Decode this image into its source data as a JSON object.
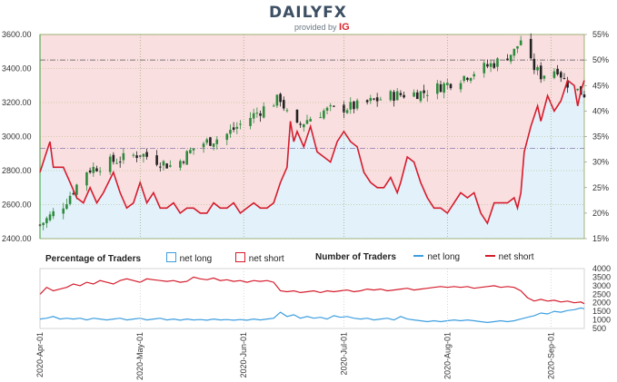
{
  "brand": {
    "name": "DAILYFX",
    "provided_by": "provided by",
    "provider": "IG"
  },
  "legend": {
    "pct_title": "Percentage of Traders",
    "count_title": "Number of Traders",
    "net_long": "net long",
    "net_short": "net short"
  },
  "colors": {
    "long_line": "#3d9ee0",
    "short_line": "#d51c2c",
    "long_fill": "#e3f1fb",
    "short_fill": "#fadfe0",
    "up_candle": "#2e8b3d",
    "down_candle": "#222222"
  },
  "chart_data": [
    {
      "type": "candlestick",
      "title": "",
      "y_left_label": "",
      "ylim": [
        2400,
        3600
      ],
      "y_ticks": [
        2400,
        2600,
        2800,
        3000,
        3200,
        3400,
        3600
      ],
      "y_tick_labels": [
        "2400.00",
        "2600.00",
        "2800.00",
        "3000.00",
        "3200.00",
        "3400.00",
        "3600.00"
      ],
      "start_day": 0,
      "end_day": 163,
      "close_anchors": [
        [
          0,
          2480
        ],
        [
          7,
          2600
        ],
        [
          14,
          2800
        ],
        [
          21,
          2850
        ],
        [
          30,
          2900
        ],
        [
          40,
          2820
        ],
        [
          47,
          2950
        ],
        [
          55,
          3000
        ],
        [
          62,
          3100
        ],
        [
          68,
          3180
        ],
        [
          72,
          3225
        ],
        [
          76,
          3040
        ],
        [
          80,
          3100
        ],
        [
          85,
          3150
        ],
        [
          95,
          3180
        ],
        [
          105,
          3240
        ],
        [
          115,
          3260
        ],
        [
          122,
          3310
        ],
        [
          130,
          3380
        ],
        [
          137,
          3440
        ],
        [
          142,
          3500
        ],
        [
          144,
          3570
        ],
        [
          146,
          3450
        ],
        [
          150,
          3360
        ],
        [
          155,
          3400
        ],
        [
          157,
          3330
        ],
        [
          160,
          3280
        ],
        [
          163,
          3250
        ]
      ],
      "ref_lines": [
        3450,
        2930
      ]
    },
    {
      "type": "line",
      "series": [
        {
          "name": "net long",
          "color": "#3d9ee0"
        },
        {
          "name": "net short",
          "color": "#d51c2c"
        }
      ],
      "y_right_label": "",
      "ylim": [
        15,
        55
      ],
      "y_ticks": [
        15,
        20,
        25,
        30,
        35,
        40,
        45,
        50,
        55
      ],
      "y_tick_labels": [
        "15%",
        "20%",
        "25%",
        "30%",
        "35%",
        "40%",
        "45%",
        "50%",
        "55%"
      ],
      "net_long_pct": [
        [
          0,
          28
        ],
        [
          2,
          32
        ],
        [
          3,
          34
        ],
        [
          4,
          29
        ],
        [
          7,
          29
        ],
        [
          9,
          26
        ],
        [
          11,
          23
        ],
        [
          13,
          22
        ],
        [
          15,
          25
        ],
        [
          17,
          22
        ],
        [
          19,
          24
        ],
        [
          22,
          28
        ],
        [
          24,
          24
        ],
        [
          26,
          21
        ],
        [
          28,
          22
        ],
        [
          30,
          26
        ],
        [
          32,
          22
        ],
        [
          34,
          24
        ],
        [
          36,
          21
        ],
        [
          38,
          21
        ],
        [
          40,
          22
        ],
        [
          42,
          20
        ],
        [
          44,
          21
        ],
        [
          46,
          21
        ],
        [
          48,
          20
        ],
        [
          50,
          20
        ],
        [
          52,
          22
        ],
        [
          54,
          21
        ],
        [
          56,
          21
        ],
        [
          58,
          22
        ],
        [
          60,
          20
        ],
        [
          62,
          21
        ],
        [
          64,
          22
        ],
        [
          66,
          21
        ],
        [
          68,
          21
        ],
        [
          70,
          22
        ],
        [
          72,
          26
        ],
        [
          74,
          29
        ],
        [
          75,
          38
        ],
        [
          76,
          34
        ],
        [
          77,
          36
        ],
        [
          79,
          33
        ],
        [
          81,
          37
        ],
        [
          83,
          32
        ],
        [
          85,
          31
        ],
        [
          87,
          30
        ],
        [
          89,
          34
        ],
        [
          91,
          36
        ],
        [
          93,
          34
        ],
        [
          95,
          33
        ],
        [
          97,
          28
        ],
        [
          99,
          26
        ],
        [
          101,
          25
        ],
        [
          103,
          25
        ],
        [
          105,
          27
        ],
        [
          107,
          24
        ],
        [
          108,
          26
        ],
        [
          110,
          31
        ],
        [
          112,
          30
        ],
        [
          114,
          26
        ],
        [
          116,
          23
        ],
        [
          118,
          21
        ],
        [
          120,
          21
        ],
        [
          122,
          20
        ],
        [
          124,
          22
        ],
        [
          126,
          24
        ],
        [
          128,
          23
        ],
        [
          130,
          24
        ],
        [
          132,
          20
        ],
        [
          134,
          18
        ],
        [
          136,
          22
        ],
        [
          138,
          22
        ],
        [
          140,
          22
        ],
        [
          142,
          23
        ],
        [
          143,
          21
        ],
        [
          144,
          24
        ],
        [
          145,
          32
        ],
        [
          147,
          37
        ],
        [
          149,
          41
        ],
        [
          150,
          38
        ],
        [
          152,
          43
        ],
        [
          154,
          40
        ],
        [
          156,
          42
        ],
        [
          158,
          46
        ],
        [
          160,
          45
        ],
        [
          161,
          41
        ],
        [
          162,
          44
        ],
        [
          163,
          46
        ]
      ]
    },
    {
      "type": "line",
      "title": "Number of Traders",
      "ylim": [
        500,
        4000
      ],
      "y_ticks": [
        500,
        1000,
        1500,
        2000,
        2500,
        3000,
        3500,
        4000
      ],
      "y_tick_labels": [
        "500",
        "1000",
        "1500",
        "2000",
        "2500",
        "3000",
        "3500",
        "4000"
      ],
      "series": [
        {
          "name": "net long",
          "color": "#3d9ee0",
          "points": [
            [
              0,
              1050
            ],
            [
              2,
              1100
            ],
            [
              4,
              1200
            ],
            [
              6,
              1050
            ],
            [
              8,
              1100
            ],
            [
              10,
              1050
            ],
            [
              12,
              1100
            ],
            [
              14,
              1000
            ],
            [
              16,
              1100
            ],
            [
              18,
              1050
            ],
            [
              20,
              1000
            ],
            [
              22,
              1050
            ],
            [
              24,
              1100
            ],
            [
              26,
              1000
            ],
            [
              28,
              1050
            ],
            [
              30,
              1100
            ],
            [
              32,
              1000
            ],
            [
              34,
              1050
            ],
            [
              36,
              1100
            ],
            [
              38,
              1000
            ],
            [
              40,
              1050
            ],
            [
              42,
              980
            ],
            [
              44,
              1050
            ],
            [
              46,
              1000
            ],
            [
              48,
              1020
            ],
            [
              50,
              980
            ],
            [
              52,
              1050
            ],
            [
              54,
              1000
            ],
            [
              56,
              1020
            ],
            [
              58,
              980
            ],
            [
              60,
              1020
            ],
            [
              62,
              980
            ],
            [
              64,
              1050
            ],
            [
              66,
              1000
            ],
            [
              68,
              1050
            ],
            [
              70,
              1100
            ],
            [
              72,
              1450
            ],
            [
              74,
              1200
            ],
            [
              76,
              1300
            ],
            [
              78,
              1100
            ],
            [
              80,
              1200
            ],
            [
              82,
              1100
            ],
            [
              84,
              1150
            ],
            [
              86,
              1050
            ],
            [
              88,
              1250
            ],
            [
              90,
              1150
            ],
            [
              92,
              1200
            ],
            [
              94,
              1100
            ],
            [
              96,
              1050
            ],
            [
              98,
              1100
            ],
            [
              100,
              1000
            ],
            [
              102,
              1050
            ],
            [
              104,
              1100
            ],
            [
              106,
              1000
            ],
            [
              108,
              1200
            ],
            [
              110,
              1050
            ],
            [
              112,
              1000
            ],
            [
              114,
              950
            ],
            [
              116,
              900
            ],
            [
              118,
              950
            ],
            [
              120,
              900
            ],
            [
              122,
              950
            ],
            [
              124,
              1000
            ],
            [
              126,
              950
            ],
            [
              128,
              1000
            ],
            [
              130,
              950
            ],
            [
              132,
              900
            ],
            [
              134,
              850
            ],
            [
              136,
              900
            ],
            [
              138,
              950
            ],
            [
              140,
              900
            ],
            [
              142,
              950
            ],
            [
              144,
              1050
            ],
            [
              146,
              1150
            ],
            [
              148,
              1250
            ],
            [
              150,
              1400
            ],
            [
              152,
              1350
            ],
            [
              154,
              1500
            ],
            [
              156,
              1450
            ],
            [
              158,
              1550
            ],
            [
              160,
              1600
            ],
            [
              162,
              1700
            ],
            [
              163,
              1650
            ]
          ]
        },
        {
          "name": "net short",
          "color": "#d51c2c",
          "points": [
            [
              0,
              2500
            ],
            [
              2,
              2900
            ],
            [
              4,
              2700
            ],
            [
              6,
              2800
            ],
            [
              8,
              2900
            ],
            [
              10,
              3100
            ],
            [
              12,
              3000
            ],
            [
              14,
              3200
            ],
            [
              16,
              3100
            ],
            [
              18,
              3300
            ],
            [
              20,
              3200
            ],
            [
              22,
              3100
            ],
            [
              24,
              3300
            ],
            [
              26,
              3400
            ],
            [
              28,
              3300
            ],
            [
              30,
              3200
            ],
            [
              32,
              3400
            ],
            [
              34,
              3350
            ],
            [
              36,
              3300
            ],
            [
              38,
              3250
            ],
            [
              40,
              3300
            ],
            [
              42,
              3200
            ],
            [
              44,
              3250
            ],
            [
              46,
              3500
            ],
            [
              48,
              3400
            ],
            [
              50,
              3350
            ],
            [
              52,
              3450
            ],
            [
              54,
              3300
            ],
            [
              56,
              3350
            ],
            [
              58,
              3250
            ],
            [
              60,
              3300
            ],
            [
              62,
              3200
            ],
            [
              64,
              3300
            ],
            [
              66,
              3250
            ],
            [
              68,
              3300
            ],
            [
              70,
              3200
            ],
            [
              72,
              2700
            ],
            [
              74,
              2650
            ],
            [
              76,
              2700
            ],
            [
              78,
              2600
            ],
            [
              80,
              2650
            ],
            [
              82,
              2700
            ],
            [
              84,
              2600
            ],
            [
              86,
              2700
            ],
            [
              88,
              2650
            ],
            [
              90,
              2700
            ],
            [
              92,
              2750
            ],
            [
              94,
              2650
            ],
            [
              96,
              2700
            ],
            [
              98,
              2800
            ],
            [
              100,
              2750
            ],
            [
              102,
              2800
            ],
            [
              104,
              2700
            ],
            [
              106,
              2750
            ],
            [
              108,
              2800
            ],
            [
              110,
              2850
            ],
            [
              112,
              2750
            ],
            [
              114,
              2800
            ],
            [
              116,
              2850
            ],
            [
              118,
              2900
            ],
            [
              120,
              2950
            ],
            [
              122,
              2900
            ],
            [
              124,
              2950
            ],
            [
              126,
              2900
            ],
            [
              128,
              2950
            ],
            [
              130,
              2850
            ],
            [
              132,
              2900
            ],
            [
              134,
              2950
            ],
            [
              136,
              3000
            ],
            [
              138,
              2900
            ],
            [
              140,
              2950
            ],
            [
              142,
              2900
            ],
            [
              144,
              2700
            ],
            [
              146,
              2300
            ],
            [
              148,
              2100
            ],
            [
              150,
              2200
            ],
            [
              152,
              2100
            ],
            [
              154,
              2150
            ],
            [
              156,
              2050
            ],
            [
              158,
              2100
            ],
            [
              160,
              2000
            ],
            [
              162,
              2050
            ],
            [
              163,
              1950
            ]
          ]
        }
      ]
    },
    {
      "type": "axis",
      "x_tick_days": [
        0,
        30,
        61,
        91,
        122,
        153
      ],
      "x_tick_labels": [
        "2020-Apr-01",
        "2020-May-01",
        "2020-Jun-01",
        "2020-Jul-01",
        "2020-Aug-01",
        "2020-Sep-01"
      ]
    }
  ]
}
